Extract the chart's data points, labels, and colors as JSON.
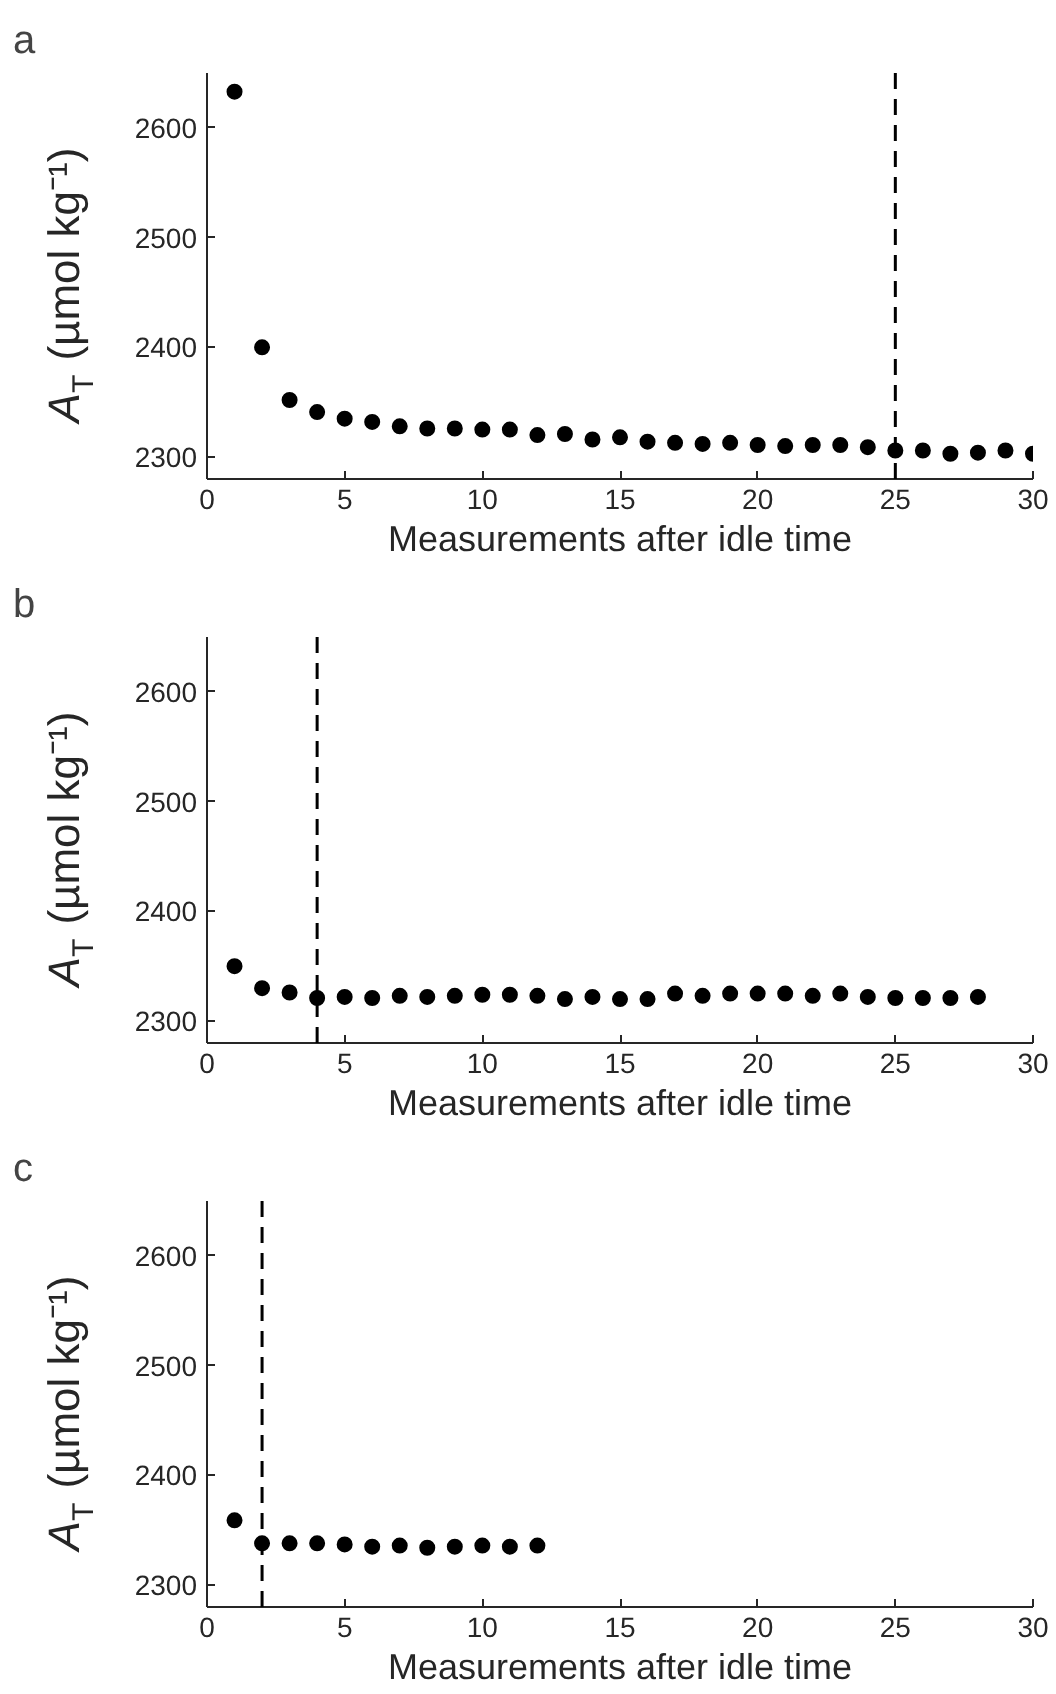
{
  "chart_data": [
    {
      "type": "scatter",
      "title": "a",
      "xlabel": "Measurements after idle time",
      "ylabel": "A$_{T}$ (µmol kg⁻¹)",
      "marker": "circle",
      "grid": false,
      "xlim": [
        0,
        30
      ],
      "xticks": [
        0,
        5,
        10,
        15,
        20,
        25,
        30
      ],
      "ylim": [
        2280,
        2650
      ],
      "yticks": [
        2300,
        2400,
        2500,
        2600
      ],
      "x": [
        1,
        2,
        3,
        4,
        5,
        6,
        7,
        8,
        9,
        10,
        11,
        12,
        13,
        14,
        15,
        16,
        17,
        18,
        19,
        20,
        21,
        22,
        23,
        24,
        25,
        26,
        27,
        28,
        29,
        30
      ],
      "series": [
        {
          "color": "#000000",
          "values": [
            2633,
            2400,
            2352,
            2341,
            2335,
            2332,
            2328,
            2326,
            2326,
            2325,
            2325,
            2320,
            2321,
            2316,
            2318,
            2314,
            2313,
            2312,
            2313,
            2311,
            2310,
            2311,
            2311,
            2309,
            2306,
            2306,
            2303,
            2304,
            2306,
            2303
          ]
        }
      ],
      "ref_lines": [
        {
          "axis": "x",
          "value": 25,
          "label": null,
          "color": "#000000",
          "line_style": "dashed"
        }
      ]
    },
    {
      "type": "scatter",
      "title": "b",
      "xlabel": "Measurements after idle time",
      "ylabel": "A$_{T}$ (µmol kg⁻¹)",
      "marker": "circle",
      "grid": false,
      "xlim": [
        0,
        30
      ],
      "xticks": [
        0,
        5,
        10,
        15,
        20,
        25,
        30
      ],
      "ylim": [
        2280,
        2650
      ],
      "yticks": [
        2300,
        2400,
        2500,
        2600
      ],
      "x": [
        1,
        2,
        3,
        4,
        5,
        6,
        7,
        8,
        9,
        10,
        11,
        12,
        13,
        14,
        15,
        16,
        17,
        18,
        19,
        20,
        21,
        22,
        23,
        24,
        25,
        26,
        27,
        28
      ],
      "series": [
        {
          "color": "#000000",
          "values": [
            2350,
            2330,
            2326,
            2321,
            2322,
            2321,
            2323,
            2322,
            2323,
            2324,
            2324,
            2323,
            2320,
            2322,
            2320,
            2320,
            2325,
            2323,
            2325,
            2325,
            2325,
            2323,
            2325,
            2322,
            2321,
            2321,
            2321,
            2322
          ]
        }
      ],
      "ref_lines": [
        {
          "axis": "x",
          "value": 4,
          "label": null,
          "color": "#000000",
          "line_style": "dashed"
        }
      ]
    },
    {
      "type": "scatter",
      "title": "c",
      "xlabel": "Measurements after idle time",
      "ylabel": "A$_{T}$ (µmol kg⁻¹)",
      "marker": "circle",
      "grid": false,
      "xlim": [
        0,
        30
      ],
      "xticks": [
        0,
        5,
        10,
        15,
        20,
        25,
        30
      ],
      "ylim": [
        2280,
        2650
      ],
      "yticks": [
        2300,
        2400,
        2500,
        2600
      ],
      "x": [
        1,
        2,
        3,
        4,
        5,
        6,
        7,
        8,
        9,
        10,
        11,
        12
      ],
      "series": [
        {
          "color": "#000000",
          "values": [
            2359,
            2338,
            2338,
            2338,
            2337,
            2335,
            2336,
            2334,
            2335,
            2336,
            2335,
            2336
          ]
        }
      ],
      "ref_lines": [
        {
          "axis": "x",
          "value": 2,
          "label": null,
          "color": "#000000",
          "line_style": "dashed"
        }
      ]
    }
  ]
}
